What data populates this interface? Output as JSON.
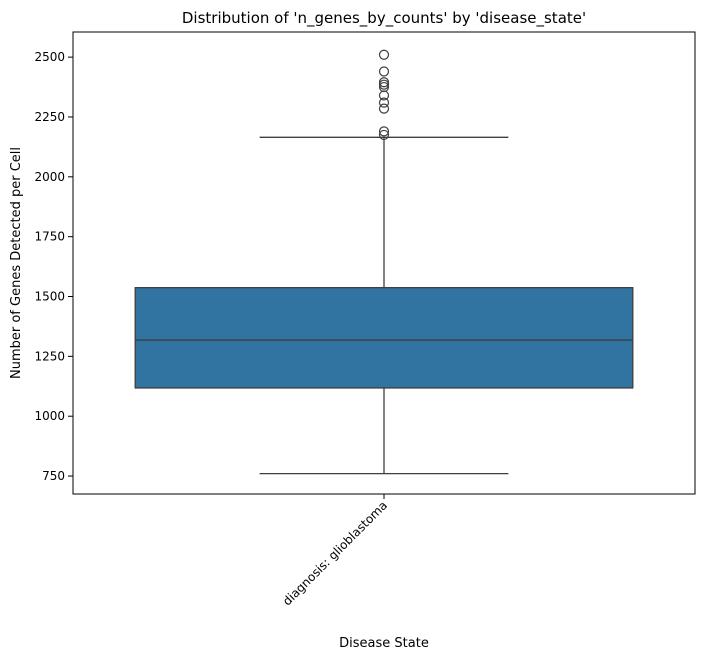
{
  "chart_data": {
    "type": "box",
    "title": "Distribution of 'n_genes_by_counts' by 'disease_state'",
    "xlabel": "Disease State",
    "ylabel": "Number of Genes Detected per Cell",
    "ylim": [
      675,
      2605
    ],
    "yticks": [
      750,
      1000,
      1250,
      1500,
      1750,
      2000,
      2250,
      2500
    ],
    "categories": [
      "diagnosis: glioblastoma"
    ],
    "boxes": [
      {
        "category": "diagnosis: glioblastoma",
        "whisker_low": 760,
        "q1": 1118,
        "median": 1318,
        "q3": 1537,
        "whisker_high": 2165,
        "outliers": [
          2175,
          2190,
          2285,
          2310,
          2340,
          2375,
          2385,
          2395,
          2440,
          2510
        ]
      }
    ],
    "grid": false,
    "legend": "none",
    "colors": {
      "box_fill": "#3274a1",
      "line": "#3f3f3f",
      "axis": "#000000"
    }
  }
}
